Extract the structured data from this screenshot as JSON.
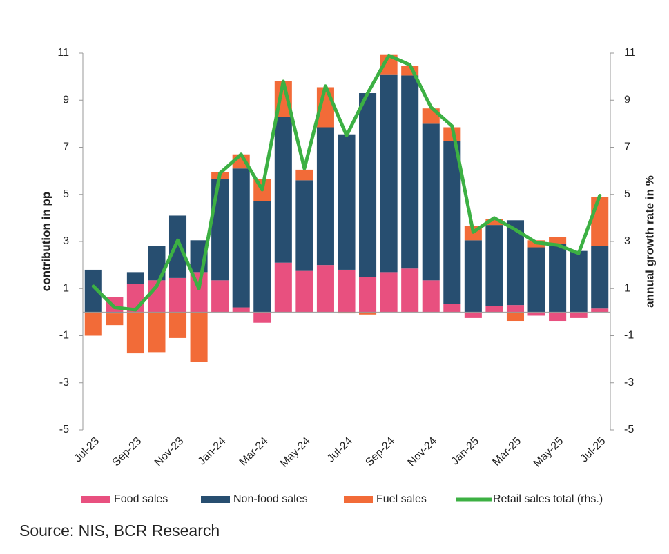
{
  "chart_data": {
    "type": "bar",
    "categories": [
      "Jul-23",
      null,
      "Sep-23",
      null,
      "Nov-23",
      null,
      "Jan-24",
      null,
      "Mar-24",
      null,
      "May-24",
      null,
      "Jul-24",
      null,
      "Sep-24",
      null,
      "Nov-24",
      null,
      "Jan-25",
      null,
      "Mar-25",
      null,
      "May-25",
      null,
      "Jul-25"
    ],
    "stacked": true,
    "series": [
      {
        "name": "Food sales",
        "type": "bar",
        "color": "#e8507f",
        "values": [
          0,
          0.65,
          1.2,
          1.35,
          1.45,
          1.7,
          1.35,
          0.2,
          -0.45,
          2.1,
          1.75,
          2.0,
          1.8,
          1.5,
          1.7,
          1.85,
          1.35,
          0.35,
          -0.25,
          0.25,
          0.3,
          -0.15,
          -0.4,
          -0.25,
          0.15
        ]
      },
      {
        "name": "Non-food sales",
        "type": "bar",
        "color": "#274e70",
        "values": [
          1.8,
          -0.05,
          0.5,
          1.45,
          2.65,
          1.35,
          4.3,
          5.9,
          4.7,
          6.2,
          3.85,
          5.85,
          5.75,
          7.8,
          8.4,
          8.2,
          6.65,
          6.9,
          3.05,
          3.45,
          3.6,
          2.75,
          2.9,
          2.6,
          2.65
        ]
      },
      {
        "name": "Fuel sales",
        "type": "bar",
        "color": "#f26b38",
        "values": [
          -1.0,
          -0.5,
          -1.75,
          -1.7,
          -1.1,
          -2.1,
          0.3,
          0.6,
          0.95,
          1.5,
          0.45,
          1.7,
          -0.05,
          -0.1,
          0.85,
          0.4,
          0.65,
          0.6,
          0.6,
          0.25,
          -0.4,
          0.3,
          0.3,
          0,
          2.1
        ]
      },
      {
        "name": "Retail sales total (rhs.)",
        "type": "line",
        "axis": "y2",
        "color": "#3cb043",
        "values": [
          1.1,
          0.2,
          0.1,
          1.1,
          3.05,
          1.0,
          5.9,
          6.7,
          5.2,
          9.8,
          6.1,
          9.6,
          7.5,
          9.3,
          10.9,
          10.5,
          8.7,
          7.9,
          3.4,
          4.0,
          3.5,
          2.95,
          2.85,
          2.5,
          4.95
        ]
      }
    ],
    "ylabel": "contribution in pp",
    "y2label": "annual growth rate in %",
    "ylim": [
      -5,
      11
    ],
    "yticks": [
      -5,
      -3,
      -1,
      1,
      3,
      5,
      7,
      9,
      11
    ],
    "y2lim": [
      -5,
      11
    ],
    "y2ticks": [
      -5,
      -3,
      -1,
      1,
      3,
      5,
      7,
      9,
      11
    ],
    "legend": "bottom",
    "source": "Source: NIS, BCR Research"
  }
}
